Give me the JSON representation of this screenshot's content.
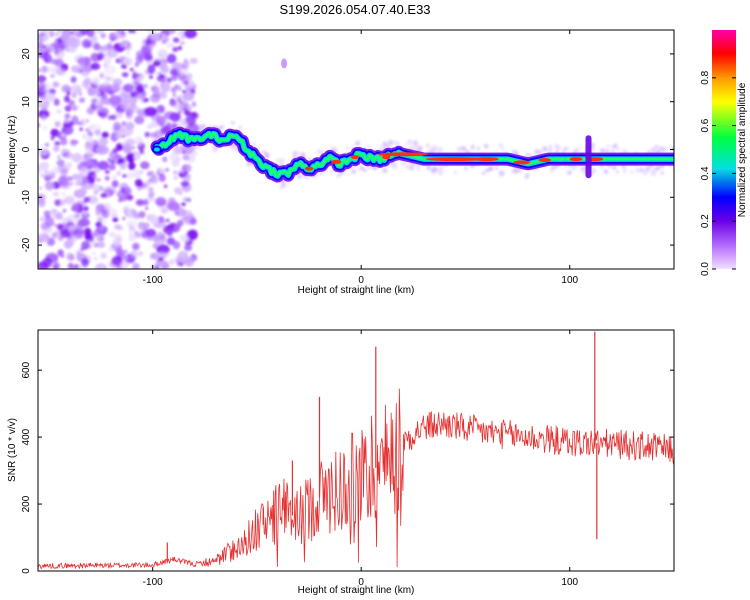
{
  "figure_title": "S199.2026.054.07.40.E33",
  "chart_data": [
    {
      "type": "heatmap",
      "panel": "top",
      "xlabel": "Height of straight line (km)",
      "ylabel": "Frequency (Hz)",
      "xlim": [
        -155,
        150
      ],
      "ylim": [
        -25,
        25
      ],
      "xticks": [
        -100,
        0,
        100
      ],
      "xtick_labels": [
        "-100",
        "0",
        "100"
      ],
      "yticks": [
        -20,
        -10,
        0,
        10,
        20
      ],
      "ytick_labels": [
        "-20",
        "-10",
        "0",
        "10",
        "20"
      ],
      "colorbar": {
        "label": "Normalized spectral amplitude",
        "range": [
          0,
          1
        ],
        "ticks": [
          0.0,
          0.2,
          0.4,
          0.6,
          0.8
        ],
        "tick_labels": [
          "0.0",
          "0.2",
          "0.4",
          "0.6",
          "0.8"
        ],
        "colormap": [
          "#f0e0ff",
          "#c080ff",
          "#6a00e8",
          "#0000ff",
          "#00e0e0",
          "#00ff40",
          "#ffff00",
          "#ff9900",
          "#ff0000",
          "#ff00aa"
        ]
      },
      "ridge": {
        "description": "dominant Doppler frequency trace",
        "x": [
          -98,
          -88,
          -80,
          -72,
          -66,
          -60,
          -55,
          -50,
          -45,
          -40,
          -35,
          -30,
          -25,
          -20,
          -15,
          -10,
          -5,
          0,
          5,
          10,
          15,
          20,
          30,
          40,
          50,
          60,
          70,
          80,
          90,
          100,
          110,
          120,
          130,
          140,
          150
        ],
        "y": [
          0,
          3,
          2,
          3,
          2,
          3,
          0,
          -2,
          -4,
          -5,
          -5,
          -3,
          -4,
          -3,
          -2,
          -3,
          -2,
          -1,
          -2,
          -2,
          -1,
          -1,
          -2,
          -2,
          -2,
          -2,
          -2,
          -3,
          -2,
          -2,
          -2,
          -2,
          -2,
          -2,
          -2
        ]
      },
      "noise_region_x": [
        -155,
        -80
      ],
      "noise_color": "#a040ff"
    },
    {
      "type": "line",
      "panel": "bottom",
      "xlabel": "Height of straight line (km)",
      "ylabel": "SNR (10 * v/v)",
      "xlim": [
        -155,
        150
      ],
      "ylim": [
        0,
        720
      ],
      "xticks": [
        -100,
        0,
        100
      ],
      "xtick_labels": [
        "-100",
        "0",
        "100"
      ],
      "yticks": [
        0,
        200,
        400,
        600
      ],
      "ytick_labels": [
        "0",
        "200",
        "400",
        "600"
      ],
      "line_color": "#e53030",
      "envelope": {
        "x": [
          -155,
          -100,
          -90,
          -80,
          -70,
          -60,
          -50,
          -40,
          -30,
          -20,
          -10,
          0,
          10,
          20,
          30,
          40,
          50,
          60,
          80,
          100,
          120,
          140,
          150
        ],
        "y": [
          15,
          18,
          35,
          20,
          30,
          70,
          120,
          180,
          160,
          220,
          250,
          280,
          320,
          390,
          430,
          440,
          425,
          415,
          400,
          385,
          380,
          370,
          360
        ]
      },
      "spikes": [
        {
          "x": -93,
          "y": 85
        },
        {
          "x": -47,
          "y": 190
        },
        {
          "x": -33,
          "y": 330
        },
        {
          "x": -20,
          "y": 520
        },
        {
          "x": 7,
          "y": 670
        },
        {
          "x": 112,
          "y": 715
        },
        {
          "x": 113,
          "y": 95
        }
      ]
    }
  ]
}
